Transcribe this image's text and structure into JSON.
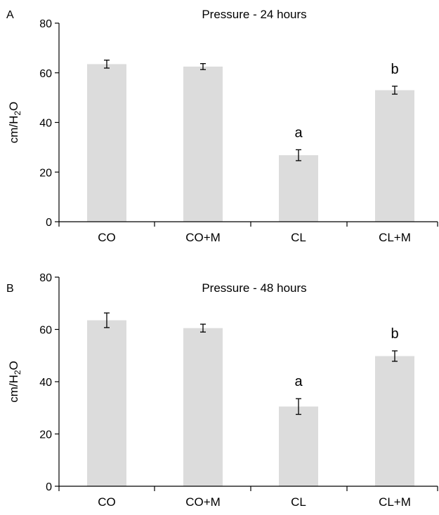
{
  "chart_data": [
    {
      "type": "bar",
      "panel_label": "A",
      "title": "Pressure - 24 hours",
      "ylabel": {
        "base": "cm/H",
        "sub": "2",
        "rest": "O"
      },
      "ylim": [
        0,
        80
      ],
      "yticks": [
        0,
        20,
        40,
        60,
        80
      ],
      "categories": [
        "CO",
        "CO+M",
        "CL",
        "CL+M"
      ],
      "values": [
        63.5,
        62.5,
        26.8,
        53.0
      ],
      "errors": [
        1.6,
        1.2,
        2.2,
        1.6
      ],
      "annotations": [
        "",
        "",
        "a",
        "b"
      ],
      "bar_color": "#dcdcdc",
      "grid": false
    },
    {
      "type": "bar",
      "panel_label": "B",
      "title": "Pressure - 48 hours",
      "ylabel": {
        "base": "cm/H",
        "sub": "2",
        "rest": "O"
      },
      "ylim": [
        0,
        80
      ],
      "yticks": [
        0,
        20,
        40,
        60,
        80
      ],
      "categories": [
        "CO",
        "CO+M",
        "CL",
        "CL+M"
      ],
      "values": [
        63.5,
        60.5,
        30.5,
        49.8
      ],
      "errors": [
        2.8,
        1.5,
        3.0,
        2.0
      ],
      "annotations": [
        "",
        "",
        "a",
        "b"
      ],
      "bar_color": "#dcdcdc",
      "grid": false
    }
  ]
}
